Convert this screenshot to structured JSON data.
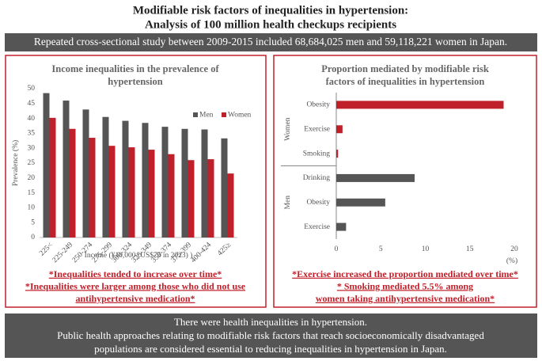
{
  "header": {
    "title": [
      "Modifiable risk factors of inequalities in hypertension:",
      "Analysis of 100 million health checkups recipients"
    ],
    "banner": "Repeated cross-sectional study between 2009-2015 included 68,684,025 men and 59,118,221 women in Japan."
  },
  "chart_data": [
    {
      "type": "bar",
      "title": [
        "Income inequalities in the prevalence of",
        "hypertension"
      ],
      "categories": [
        "225<",
        "225-249",
        "250-274",
        "275-299",
        "300-324",
        "325-349",
        "350-374",
        "375-399",
        "400-424",
        "425≥"
      ],
      "series": [
        {
          "name": "Men",
          "color": "#555555",
          "values": [
            48.5,
            46,
            43,
            40.5,
            39.2,
            38.5,
            37.2,
            36.5,
            36.3,
            33.3
          ]
        },
        {
          "name": "Women",
          "color": "#c0202a",
          "values": [
            40.2,
            36.5,
            33.5,
            30.8,
            30.3,
            29.5,
            28,
            26,
            26.3,
            21.5
          ]
        }
      ],
      "ylim": [
        0,
        50
      ],
      "yticks": [
        0,
        5,
        10,
        15,
        20,
        25,
        30,
        35,
        40,
        45,
        50
      ],
      "ylabel": "Prevalence (%)",
      "xlabel": "Income (¥10,000 (US$75 in 2023) )",
      "legend": "upper-right",
      "notes": [
        "*Inequalities tended to increase over time*",
        "*Inequalities were larger among those who did not use",
        "antihypertensive medication*"
      ]
    },
    {
      "type": "hbar",
      "title": [
        "Proportion mediated by modifiable risk",
        "factors of inequalities in hypertension"
      ],
      "series": [
        {
          "name": "Women",
          "color": "#c0202a",
          "categories": [
            "Obesity",
            "Exercise",
            "Smoking"
          ],
          "values": [
            18.8,
            0.7,
            0.2
          ]
        },
        {
          "name": "Men",
          "color": "#555555",
          "categories": [
            "Drinking",
            "Obesity",
            "Exercise"
          ],
          "values": [
            8.8,
            5.5,
            1.1
          ]
        }
      ],
      "xlim": [
        0,
        20
      ],
      "xticks": [
        0,
        5,
        10,
        15,
        20
      ],
      "xlabel": "(%)",
      "notes": [
        "*Exercise increased the proportion mediated over time*",
        "* Smoking mediated 5.5% among",
        "women taking antihypertensive medication*"
      ]
    }
  ],
  "footer": [
    "There were health inequalities in hypertension.",
    "Public health approaches relating to modifiable risk factors that reach socioeconomically disadvantaged",
    "populations are considered essential to reducing inequalities in hypertension in Japan."
  ]
}
